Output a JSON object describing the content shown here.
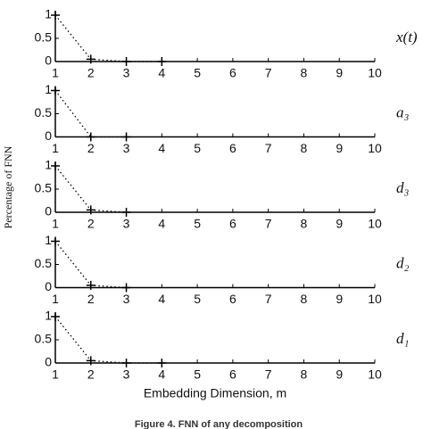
{
  "figure": {
    "ylabel": "Percentage of FNN",
    "xlabel": "Embedding Dimension, m",
    "caption": "Figure 4. FNN of any decomposition"
  },
  "chart_data": [
    {
      "type": "line",
      "label": "x(t)",
      "x": [
        1,
        2,
        3,
        4
      ],
      "values": [
        1,
        0.05,
        0,
        0
      ],
      "color": "#000000",
      "xlim": [
        1,
        10
      ],
      "ylim": [
        0,
        1
      ],
      "xticks": [
        1,
        2,
        3,
        4,
        5,
        6,
        7,
        8,
        9,
        10
      ],
      "yticks": [
        0,
        0.5,
        1
      ]
    },
    {
      "type": "line",
      "label": "a₃",
      "x": [
        1,
        2,
        3
      ],
      "values": [
        1,
        0,
        0
      ],
      "color": "#000000",
      "xlim": [
        1,
        10
      ],
      "ylim": [
        0,
        1
      ],
      "xticks": [
        1,
        2,
        3,
        4,
        5,
        6,
        7,
        8,
        9,
        10
      ],
      "yticks": [
        0,
        0.5,
        1
      ]
    },
    {
      "type": "line",
      "label": "d₃",
      "x": [
        1,
        2,
        3
      ],
      "values": [
        1,
        0.05,
        0
      ],
      "color": "#000000",
      "xlim": [
        1,
        10
      ],
      "ylim": [
        0,
        1
      ],
      "xticks": [
        1,
        2,
        3,
        4,
        5,
        6,
        7,
        8,
        9,
        10
      ],
      "yticks": [
        0,
        0.5,
        1
      ]
    },
    {
      "type": "line",
      "label": "d₂",
      "x": [
        1,
        2,
        3
      ],
      "values": [
        1,
        0.05,
        0
      ],
      "color": "#000000",
      "xlim": [
        1,
        10
      ],
      "ylim": [
        0,
        1
      ],
      "xticks": [
        1,
        2,
        3,
        4,
        5,
        6,
        7,
        8,
        9,
        10
      ],
      "yticks": [
        0,
        0.5,
        1
      ]
    },
    {
      "type": "line",
      "label": "d₁",
      "x": [
        1,
        2,
        3,
        4
      ],
      "values": [
        1,
        0.05,
        0,
        0
      ],
      "color": "#000000",
      "xlim": [
        1,
        10
      ],
      "ylim": [
        0,
        1
      ],
      "xticks": [
        1,
        2,
        3,
        4,
        5,
        6,
        7,
        8,
        9,
        10
      ],
      "yticks": [
        0,
        0.5,
        1
      ]
    }
  ]
}
